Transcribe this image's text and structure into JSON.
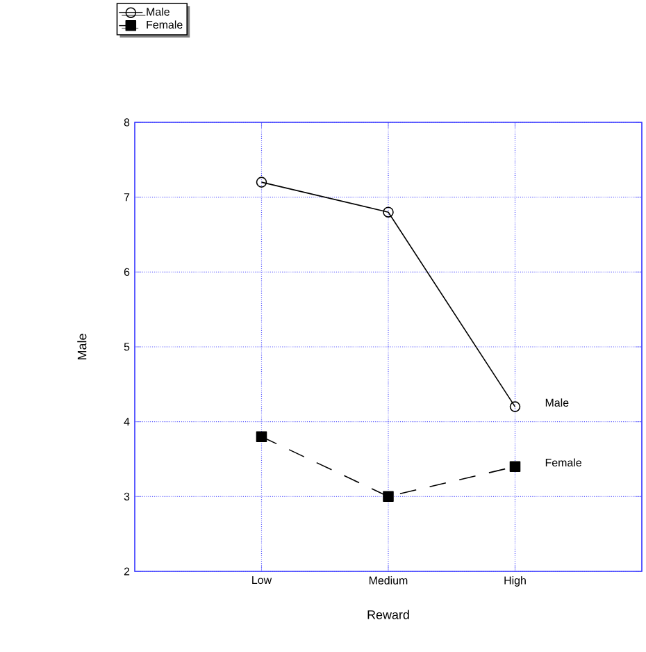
{
  "chart_data": {
    "type": "line",
    "xlabel": "Reward",
    "ylabel": "Male",
    "categories": [
      "Low",
      "Medium",
      "High"
    ],
    "series": [
      {
        "name": "Male",
        "color": "#000000",
        "values": [
          7.2,
          6.8,
          4.2
        ],
        "marker": "circle",
        "line_style": "solid"
      },
      {
        "name": "Female",
        "color": "#000000",
        "values": [
          3.8,
          3.0,
          3.4
        ],
        "marker": "square",
        "line_style": "dashed"
      }
    ],
    "ylim": [
      2,
      8
    ],
    "yticks": [
      2,
      3,
      4,
      5,
      6,
      7,
      8
    ],
    "grid": true,
    "legend": "top left"
  }
}
